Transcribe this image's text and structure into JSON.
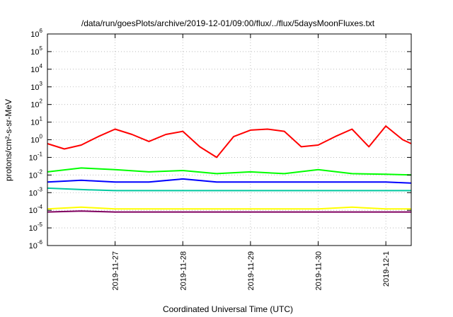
{
  "chart_data": {
    "type": "line",
    "title": "/data/run/goesPlots/archive/2019-12-01/09:00/flux/../flux/5daysMoonFluxes.txt",
    "xlabel": "Coordinated Universal Time (UTC)",
    "ylabel": "protons/cm²-s-sr-MeV",
    "y_scale": "log",
    "ylim": [
      1e-06,
      1000000.0
    ],
    "xlim": [
      "2019-11-26T00:00",
      "2019-12-01T09:00"
    ],
    "grid": "dotted",
    "legend": "none",
    "x_ticks": [
      "2019-11-27",
      "2019-11-28",
      "2019-11-29",
      "2019-11-30",
      "2019-12-1"
    ],
    "y_ticks": [
      {
        "base": "10",
        "exp": "-6"
      },
      {
        "base": "10",
        "exp": "-5"
      },
      {
        "base": "10",
        "exp": "-4"
      },
      {
        "base": "10",
        "exp": "-3"
      },
      {
        "base": "10",
        "exp": "-2"
      },
      {
        "base": "10",
        "exp": "-1"
      },
      {
        "base": "10",
        "exp": "0"
      },
      {
        "base": "10",
        "exp": "1"
      },
      {
        "base": "10",
        "exp": "2"
      },
      {
        "base": "10",
        "exp": "3"
      },
      {
        "base": "10",
        "exp": "4"
      },
      {
        "base": "10",
        "exp": "5"
      },
      {
        "base": "10",
        "exp": "6"
      }
    ],
    "series": [
      {
        "color": "#ff0000",
        "x": [
          "2019-11-26T00:00",
          "2019-11-26T06:00",
          "2019-11-26T12:00",
          "2019-11-26T18:00",
          "2019-11-27T00:00",
          "2019-11-27T06:00",
          "2019-11-27T12:00",
          "2019-11-27T18:00",
          "2019-11-28T00:00",
          "2019-11-28T06:00",
          "2019-11-28T12:00",
          "2019-11-28T18:00",
          "2019-11-29T00:00",
          "2019-11-29T06:00",
          "2019-11-29T12:00",
          "2019-11-29T18:00",
          "2019-11-30T00:00",
          "2019-11-30T06:00",
          "2019-11-30T12:00",
          "2019-11-30T18:00",
          "2019-12-01T00:00",
          "2019-12-01T06:00",
          "2019-12-01T09:00"
        ],
        "y": [
          0.6,
          0.3,
          0.5,
          1.5,
          4,
          2,
          0.8,
          2,
          3,
          0.4,
          0.1,
          1.5,
          3.5,
          4,
          3,
          0.4,
          0.5,
          1.5,
          4,
          0.4,
          6,
          1,
          0.6
        ]
      },
      {
        "color": "#00ff00",
        "x": [
          "2019-11-26T00:00",
          "2019-11-26T12:00",
          "2019-11-27T00:00",
          "2019-11-27T12:00",
          "2019-11-28T00:00",
          "2019-11-28T12:00",
          "2019-11-29T00:00",
          "2019-11-29T12:00",
          "2019-11-30T00:00",
          "2019-11-30T12:00",
          "2019-12-01T00:00",
          "2019-12-01T09:00"
        ],
        "y": [
          0.015,
          0.025,
          0.02,
          0.015,
          0.018,
          0.012,
          0.015,
          0.012,
          0.02,
          0.012,
          0.011,
          0.01
        ]
      },
      {
        "color": "#0000ff",
        "x": [
          "2019-11-26T00:00",
          "2019-11-26T12:00",
          "2019-11-27T00:00",
          "2019-11-27T12:00",
          "2019-11-28T00:00",
          "2019-11-28T12:00",
          "2019-11-29T00:00",
          "2019-11-29T12:00",
          "2019-11-30T00:00",
          "2019-11-30T12:00",
          "2019-12-01T00:00",
          "2019-12-01T09:00"
        ],
        "y": [
          0.004,
          0.005,
          0.004,
          0.004,
          0.006,
          0.004,
          0.004,
          0.004,
          0.004,
          0.004,
          0.004,
          0.0035
        ]
      },
      {
        "color": "#00c8a0",
        "x": [
          "2019-11-26T00:00",
          "2019-11-26T12:00",
          "2019-11-27T00:00",
          "2019-11-27T12:00",
          "2019-11-28T00:00",
          "2019-11-28T12:00",
          "2019-11-29T00:00",
          "2019-11-29T12:00",
          "2019-11-30T00:00",
          "2019-11-30T12:00",
          "2019-12-01T00:00",
          "2019-12-01T09:00"
        ],
        "y": [
          0.0018,
          0.0015,
          0.0013,
          0.0013,
          0.0013,
          0.0013,
          0.0013,
          0.0013,
          0.0013,
          0.0013,
          0.0013,
          0.0013
        ]
      },
      {
        "color": "#ffff00",
        "x": [
          "2019-11-26T00:00",
          "2019-11-26T12:00",
          "2019-11-27T00:00",
          "2019-11-27T12:00",
          "2019-11-28T00:00",
          "2019-11-28T12:00",
          "2019-11-29T00:00",
          "2019-11-29T12:00",
          "2019-11-30T00:00",
          "2019-11-30T12:00",
          "2019-12-01T00:00",
          "2019-12-01T09:00"
        ],
        "y": [
          0.00012,
          0.00015,
          0.00012,
          0.00012,
          0.00012,
          0.00012,
          0.00012,
          0.00012,
          0.00012,
          0.00015,
          0.00012,
          0.00012
        ]
      },
      {
        "color": "#800060",
        "x": [
          "2019-11-26T00:00",
          "2019-11-26T12:00",
          "2019-11-27T00:00",
          "2019-11-27T12:00",
          "2019-11-28T00:00",
          "2019-11-28T12:00",
          "2019-11-29T00:00",
          "2019-11-29T12:00",
          "2019-11-30T00:00",
          "2019-11-30T12:00",
          "2019-12-01T00:00",
          "2019-12-01T09:00"
        ],
        "y": [
          8e-05,
          9e-05,
          8e-05,
          8e-05,
          8e-05,
          8e-05,
          8e-05,
          8e-05,
          8e-05,
          8e-05,
          8e-05,
          8e-05
        ]
      }
    ]
  }
}
